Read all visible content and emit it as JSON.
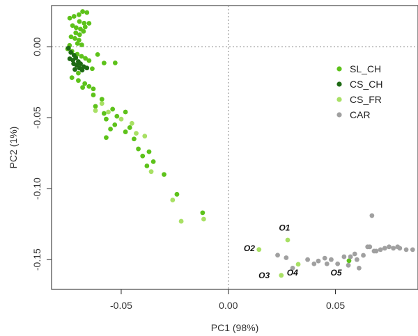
{
  "chart_data": {
    "type": "scatter",
    "title": "",
    "xlabel": "PC1 (98%)",
    "ylabel": "PC2 (1%)",
    "xlim": [
      -0.0825,
      0.0885
    ],
    "ylim": [
      -0.171,
      0.029
    ],
    "x_ticks": [
      {
        "value": -0.05,
        "label": "-0.05"
      },
      {
        "value": 0.0,
        "label": "0.00"
      },
      {
        "value": 0.05,
        "label": "0.05"
      }
    ],
    "y_ticks": [
      {
        "value": 0.0,
        "label": "0.00"
      },
      {
        "value": -0.05,
        "label": "-0.05"
      },
      {
        "value": -0.1,
        "label": "-0.10"
      },
      {
        "value": -0.15,
        "label": "-0.15"
      }
    ],
    "grid": false,
    "reference_lines": {
      "x": 0,
      "y": 0
    },
    "legend_position": "right, upper",
    "series": [
      {
        "name": "SL_CH",
        "color": "#5DC21A",
        "points": [
          [
            -0.0697,
            0.0226
          ],
          [
            -0.068,
            0.0248
          ],
          [
            -0.066,
            0.0241
          ],
          [
            -0.074,
            0.0201
          ],
          [
            -0.072,
            0.0214
          ],
          [
            -0.0695,
            0.0178
          ],
          [
            -0.0673,
            0.0166
          ],
          [
            -0.065,
            0.0165
          ],
          [
            -0.0727,
            0.0149
          ],
          [
            -0.071,
            0.0134
          ],
          [
            -0.069,
            0.0124
          ],
          [
            -0.0668,
            0.0139
          ],
          [
            -0.0712,
            0.0098
          ],
          [
            -0.0694,
            0.0085
          ],
          [
            -0.0676,
            0.0108
          ],
          [
            -0.0734,
            0.007
          ],
          [
            -0.0716,
            0.0058
          ],
          [
            -0.0697,
            0.0046
          ],
          [
            -0.0704,
            0.0023
          ],
          [
            -0.0684,
            0.0013
          ],
          [
            -0.0741,
            0.0009
          ],
          [
            -0.075,
            -0.0015
          ],
          [
            -0.073,
            -0.0032
          ],
          [
            -0.0705,
            -0.0053
          ],
          [
            -0.0685,
            -0.0068
          ],
          [
            -0.0667,
            -0.0082
          ],
          [
            -0.065,
            -0.0098
          ],
          [
            -0.061,
            -0.0055
          ],
          [
            -0.0635,
            -0.0155
          ],
          [
            -0.058,
            -0.0115
          ],
          [
            -0.0528,
            -0.0114
          ],
          [
            -0.07,
            -0.0186
          ],
          [
            -0.073,
            -0.0218
          ],
          [
            -0.07,
            -0.0238
          ],
          [
            -0.067,
            -0.026
          ],
          [
            -0.065,
            -0.028
          ],
          [
            -0.063,
            -0.0297
          ],
          [
            -0.068,
            -0.0287
          ],
          [
            -0.063,
            -0.034
          ],
          [
            -0.059,
            -0.037
          ],
          [
            -0.062,
            -0.042
          ],
          [
            -0.058,
            -0.047
          ],
          [
            -0.054,
            -0.044
          ],
          [
            -0.052,
            -0.049
          ],
          [
            -0.057,
            -0.051
          ],
          [
            -0.053,
            -0.055
          ],
          [
            -0.048,
            -0.046
          ],
          [
            -0.046,
            -0.057
          ],
          [
            -0.048,
            -0.06
          ],
          [
            -0.044,
            -0.065
          ],
          [
            -0.057,
            -0.064
          ],
          [
            -0.055,
            -0.058
          ],
          [
            -0.042,
            -0.072
          ],
          [
            -0.04,
            -0.077
          ],
          [
            -0.037,
            -0.074
          ],
          [
            -0.038,
            -0.084
          ],
          [
            -0.035,
            -0.081
          ],
          [
            -0.03,
            -0.09
          ],
          [
            -0.024,
            -0.104
          ],
          [
            -0.012,
            -0.117
          ],
          [
            0.0563,
            -0.1508
          ]
        ]
      },
      {
        "name": "CS_CH",
        "color": "#1E6A14",
        "points": [
          [
            -0.0746,
            -0.001
          ],
          [
            -0.0735,
            -0.004
          ],
          [
            -0.072,
            -0.006
          ],
          [
            -0.074,
            -0.0085
          ],
          [
            -0.0725,
            -0.0095
          ],
          [
            -0.0712,
            -0.0078
          ],
          [
            -0.07,
            -0.0105
          ],
          [
            -0.0722,
            -0.012
          ],
          [
            -0.0708,
            -0.013
          ],
          [
            -0.069,
            -0.012
          ],
          [
            -0.0675,
            -0.014
          ],
          [
            -0.0695,
            -0.015
          ],
          [
            -0.0716,
            -0.016
          ],
          [
            -0.0682,
            -0.0165
          ],
          [
            -0.066,
            -0.015
          ]
        ]
      },
      {
        "name": "CS_FR",
        "color": "#A8E064",
        "points": [
          [
            -0.059,
            -0.04
          ],
          [
            -0.062,
            -0.045
          ],
          [
            -0.056,
            -0.046
          ],
          [
            -0.05,
            -0.051
          ],
          [
            -0.045,
            -0.054
          ],
          [
            -0.043,
            -0.061
          ],
          [
            -0.039,
            -0.063
          ],
          [
            -0.036,
            -0.088
          ],
          [
            -0.026,
            -0.108
          ],
          [
            -0.022,
            -0.123
          ],
          [
            -0.0115,
            -0.1215
          ],
          [
            0.0143,
            -0.1429
          ],
          [
            0.0277,
            -0.1362
          ],
          [
            0.0326,
            -0.1533
          ],
          [
            0.0247,
            -0.1611
          ]
        ]
      },
      {
        "name": "CAR",
        "color": "#A0A0A0",
        "points": [
          [
            0.023,
            -0.1469
          ],
          [
            0.027,
            -0.1487
          ],
          [
            0.03,
            -0.156
          ],
          [
            0.037,
            -0.15
          ],
          [
            0.04,
            -0.153
          ],
          [
            0.042,
            -0.151
          ],
          [
            0.045,
            -0.149
          ],
          [
            0.046,
            -0.153
          ],
          [
            0.048,
            -0.15
          ],
          [
            0.051,
            -0.153
          ],
          [
            0.054,
            -0.148
          ],
          [
            0.056,
            -0.154
          ],
          [
            0.057,
            -0.148
          ],
          [
            0.059,
            -0.146
          ],
          [
            0.06,
            -0.15
          ],
          [
            0.061,
            -0.156
          ],
          [
            0.063,
            -0.147
          ],
          [
            0.065,
            -0.141
          ],
          [
            0.066,
            -0.141
          ],
          [
            0.067,
            -0.119
          ],
          [
            0.068,
            -0.144
          ],
          [
            0.069,
            -0.144
          ],
          [
            0.071,
            -0.143
          ],
          [
            0.073,
            -0.142
          ],
          [
            0.075,
            -0.141
          ],
          [
            0.077,
            -0.142
          ],
          [
            0.079,
            -0.141
          ],
          [
            0.08,
            -0.142
          ],
          [
            0.083,
            -0.143
          ],
          [
            0.086,
            -0.143
          ]
        ]
      }
    ],
    "annotations": [
      {
        "text": "O1",
        "x": 0.0262,
        "y": -0.1295
      },
      {
        "text": "O2",
        "x": 0.0098,
        "y": -0.144
      },
      {
        "text": "O3",
        "x": 0.0167,
        "y": -0.1632
      },
      {
        "text": "O4",
        "x": 0.0299,
        "y": -0.1612
      },
      {
        "text": "O5",
        "x": 0.0503,
        "y": -0.1612
      }
    ]
  }
}
